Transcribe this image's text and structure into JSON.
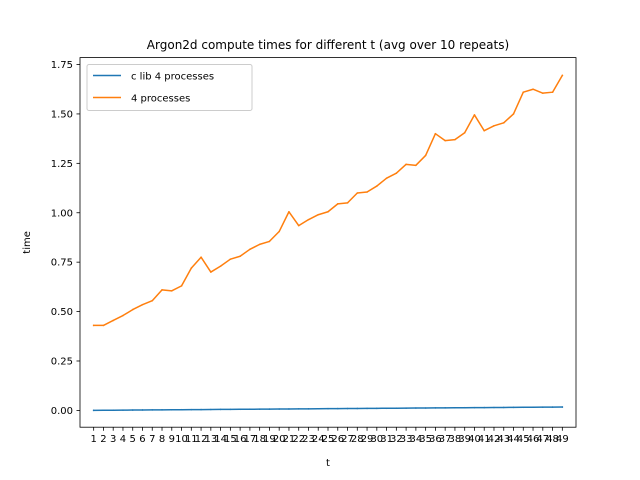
{
  "chart_data": {
    "type": "line",
    "title": "Argon2d compute times for different t (avg over 10 repeats)",
    "xlabel": "t",
    "ylabel": "time",
    "x": [
      1,
      2,
      3,
      4,
      5,
      6,
      7,
      8,
      9,
      10,
      11,
      12,
      13,
      14,
      15,
      16,
      17,
      18,
      19,
      20,
      21,
      22,
      23,
      24,
      25,
      26,
      27,
      28,
      29,
      30,
      31,
      32,
      33,
      34,
      35,
      36,
      37,
      38,
      39,
      40,
      41,
      42,
      43,
      44,
      45,
      46,
      47,
      48,
      49
    ],
    "xlim": [
      -0.4,
      50.4
    ],
    "ylim": [
      -0.085,
      1.785
    ],
    "yticks": [
      0.0,
      0.25,
      0.5,
      0.75,
      1.0,
      1.25,
      1.5,
      1.75
    ],
    "ytick_labels": [
      "0.00",
      "0.25",
      "0.50",
      "0.75",
      "1.00",
      "1.25",
      "1.50",
      "1.75"
    ],
    "legend_position": "upper-left",
    "grid": false,
    "series": [
      {
        "name": "c lib 4 processes",
        "color": "#1f77b4",
        "values": [
          0.0003,
          0.0007,
          0.001,
          0.0014,
          0.0017,
          0.0021,
          0.0024,
          0.0028,
          0.0031,
          0.0035,
          0.0038,
          0.0042,
          0.0045,
          0.0049,
          0.0052,
          0.0056,
          0.0059,
          0.0063,
          0.0066,
          0.007,
          0.0073,
          0.0077,
          0.008,
          0.0084,
          0.0087,
          0.0091,
          0.0094,
          0.0098,
          0.0101,
          0.0105,
          0.0108,
          0.0112,
          0.0115,
          0.0119,
          0.0122,
          0.0126,
          0.0129,
          0.0133,
          0.0136,
          0.014,
          0.0143,
          0.0147,
          0.015,
          0.0154,
          0.0157,
          0.0161,
          0.0164,
          0.0168,
          0.0171
        ]
      },
      {
        "name": "4 processes",
        "color": "#ff7f0e",
        "values": [
          0.43,
          0.43,
          0.455,
          0.48,
          0.51,
          0.535,
          0.555,
          0.61,
          0.605,
          0.63,
          0.72,
          0.775,
          0.7,
          0.73,
          0.765,
          0.78,
          0.815,
          0.84,
          0.855,
          0.905,
          1.005,
          0.935,
          0.965,
          0.99,
          1.005,
          1.045,
          1.05,
          1.1,
          1.105,
          1.135,
          1.175,
          1.2,
          1.245,
          1.24,
          1.29,
          1.4,
          1.365,
          1.37,
          1.405,
          1.495,
          1.415,
          1.44,
          1.455,
          1.5,
          1.61,
          1.625,
          1.605,
          1.61,
          1.695
        ]
      }
    ]
  }
}
